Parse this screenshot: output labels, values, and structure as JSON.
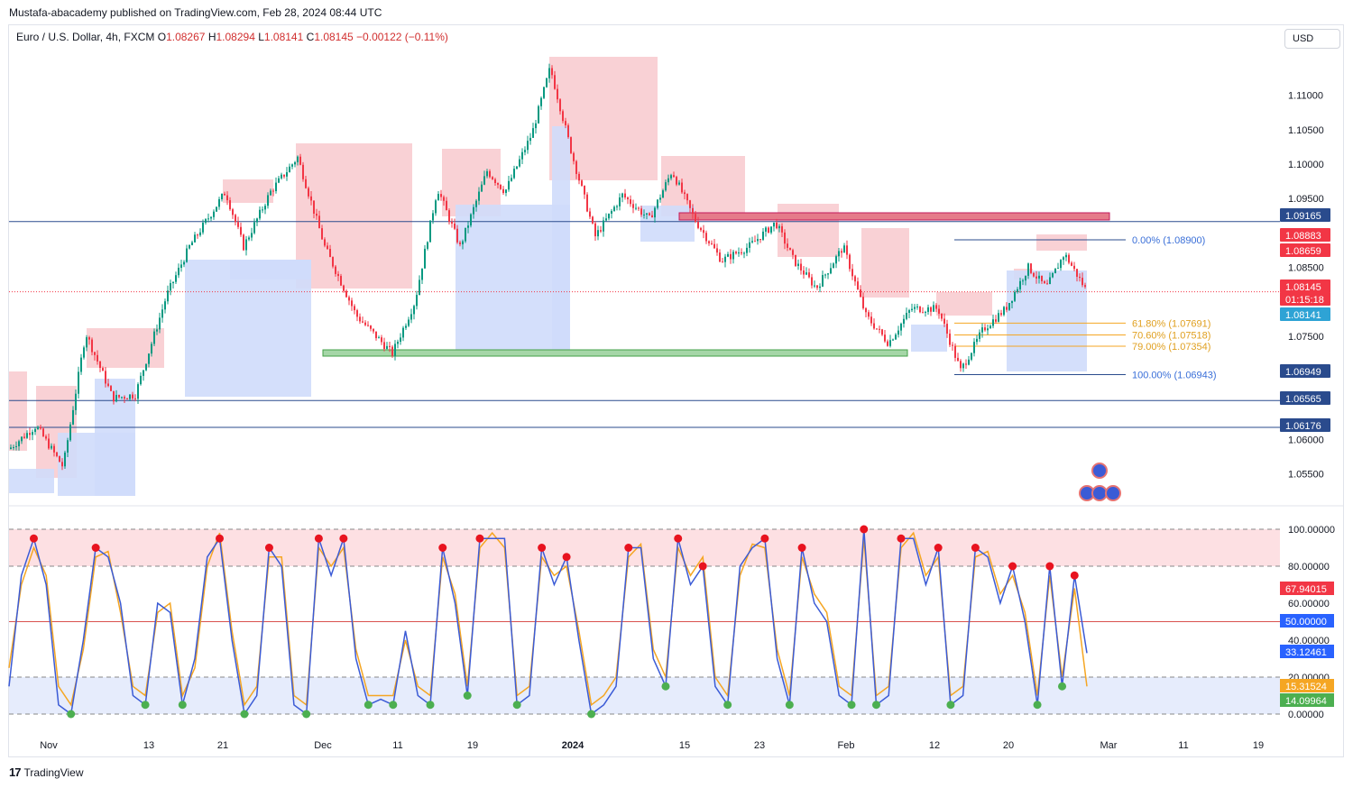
{
  "header": {
    "published": "Mustafa-abacademy published on TradingView.com, Feb 28, 2024 08:44 UTC"
  },
  "symbol": {
    "name": "Euro / U.S. Dollar, 4h, FXCM",
    "open_label": "O",
    "open": "1.08267",
    "high_label": "H",
    "high": "1.08294",
    "low_label": "L",
    "low": "1.08141",
    "close_label": "C",
    "close": "1.08145",
    "change": "−0.00122 (−0.11%)"
  },
  "currency": "USD",
  "footer": {
    "brand": "TradingView"
  },
  "colors": {
    "up": "#089981",
    "down": "#f23645",
    "resistance_fill": "#f8c9ce",
    "support_fill": "#cfdcfb",
    "hline": "#2a4b8d",
    "fib": "#f5a623",
    "fib_text": "#2962ff",
    "stoch_k": "#3b5bd6",
    "stoch_d": "#f5a623"
  },
  "chart_data": [
    {
      "type": "candlestick",
      "title": "Euro / U.S. Dollar, 4h, FXCM",
      "ylim": [
        1.0505,
        1.1165
      ],
      "y_ticks": [
        "1.11000",
        "1.10500",
        "1.10000",
        "1.09500",
        "1.08500",
        "1.07500",
        "1.06000",
        "1.05500"
      ],
      "x_ticks": [
        "Nov",
        "13",
        "21",
        "Dec",
        "11",
        "19",
        "2024",
        "15",
        "23",
        "Feb",
        "12",
        "20",
        "Mar",
        "11",
        "19"
      ],
      "price_path": [
        [
          0,
          1.0575
        ],
        [
          40,
          1.062
        ],
        [
          70,
          1.056
        ],
        [
          95,
          1.0755
        ],
        [
          125,
          1.066
        ],
        [
          150,
          1.0665
        ],
        [
          185,
          1.081
        ],
        [
          210,
          1.088
        ],
        [
          250,
          1.096
        ],
        [
          270,
          1.088
        ],
        [
          300,
          1.096
        ],
        [
          330,
          1.101
        ],
        [
          360,
          1.088
        ],
        [
          395,
          1.078
        ],
        [
          435,
          1.0725
        ],
        [
          460,
          1.08
        ],
        [
          485,
          1.0965
        ],
        [
          510,
          1.088
        ],
        [
          540,
          1.099
        ],
        [
          560,
          1.096
        ],
        [
          590,
          1.1045
        ],
        [
          610,
          1.114
        ],
        [
          635,
          1.101
        ],
        [
          660,
          1.0895
        ],
        [
          690,
          1.0955
        ],
        [
          720,
          1.092
        ],
        [
          745,
          1.099
        ],
        [
          770,
          1.092
        ],
        [
          800,
          1.086
        ],
        [
          830,
          1.088
        ],
        [
          860,
          1.0915
        ],
        [
          880,
          1.086
        ],
        [
          905,
          1.082
        ],
        [
          935,
          1.088
        ],
        [
          960,
          1.078
        ],
        [
          985,
          1.074
        ],
        [
          1010,
          1.079
        ],
        [
          1040,
          1.079
        ],
        [
          1065,
          1.07
        ],
        [
          1090,
          1.076
        ],
        [
          1115,
          1.079
        ],
        [
          1140,
          1.085
        ],
        [
          1160,
          1.082
        ],
        [
          1180,
          1.087
        ],
        [
          1205,
          1.0815
        ]
      ],
      "levels": [
        {
          "label": "1.09165",
          "value": 1.09165
        },
        {
          "label": "1.06565",
          "value": 1.06565
        },
        {
          "label": "1.06176",
          "value": 1.06176
        }
      ],
      "price_tags": [
        {
          "label": "1.09165",
          "color": "#2a4b8d"
        },
        {
          "label": "1.08883",
          "color": "#f23645"
        },
        {
          "label": "1.08659",
          "color": "#f23645"
        },
        {
          "label": "1.08145",
          "color": "#f23645"
        },
        {
          "label": "01:15:18",
          "color": "#f23645"
        },
        {
          "label": "1.08141",
          "color": "#2ea3d5"
        },
        {
          "label": "1.06949",
          "color": "#2a4b8d"
        },
        {
          "label": "1.06565",
          "color": "#2a4b8d"
        },
        {
          "label": "1.06176",
          "color": "#2a4b8d"
        }
      ],
      "fibonacci": [
        {
          "label": "0.00% (1.08900)",
          "value": 1.089
        },
        {
          "label": "61.80% (1.07691)",
          "value": 1.07691
        },
        {
          "label": "70.60% (1.07518)",
          "value": 1.07518
        },
        {
          "label": "79.00% (1.07354)",
          "value": 1.07354
        },
        {
          "label": "100.00% (1.06943)",
          "value": 1.06943
        }
      ],
      "resistance_zone": [
        1.0912,
        1.0918
      ],
      "support_zone": [
        1.0719,
        1.0725
      ]
    },
    {
      "type": "line",
      "title": "Stochastic",
      "ylim": [
        0,
        100
      ],
      "y_ticks": [
        "100.00000",
        "80.00000",
        "60.00000",
        "40.00000",
        "20.00000",
        "0.00000"
      ],
      "overbought": 80,
      "oversold": 20,
      "mid": 50,
      "series": [
        {
          "values": [
            15,
            75,
            95,
            70,
            5,
            0,
            40,
            90,
            85,
            60,
            10,
            5,
            60,
            55,
            5,
            30,
            85,
            95,
            40,
            0,
            10,
            90,
            80,
            5,
            0,
            95,
            75,
            95,
            30,
            5,
            8,
            5,
            45,
            10,
            5,
            90,
            60,
            10,
            95,
            95,
            95,
            5,
            10,
            90,
            70,
            85,
            40,
            0,
            5,
            15,
            90,
            90,
            30,
            15,
            95,
            70,
            80,
            15,
            5,
            80,
            90,
            95,
            30,
            5,
            90,
            60,
            50,
            10,
            5,
            100,
            5,
            10,
            95,
            95,
            70,
            90,
            5,
            10,
            90,
            85,
            60,
            80,
            50,
            5,
            80,
            15,
            75,
            33
          ]
        },
        {
          "values": [
            25,
            70,
            90,
            75,
            15,
            5,
            35,
            85,
            88,
            55,
            15,
            10,
            55,
            60,
            10,
            25,
            80,
            98,
            45,
            5,
            15,
            85,
            85,
            10,
            5,
            90,
            80,
            90,
            35,
            10,
            10,
            10,
            40,
            15,
            10,
            85,
            65,
            15,
            90,
            98,
            90,
            10,
            15,
            85,
            75,
            80,
            45,
            5,
            10,
            20,
            85,
            92,
            35,
            20,
            90,
            75,
            85,
            20,
            10,
            75,
            92,
            90,
            35,
            10,
            85,
            65,
            55,
            15,
            10,
            95,
            10,
            15,
            90,
            98,
            75,
            85,
            10,
            15,
            85,
            88,
            65,
            75,
            55,
            10,
            75,
            20,
            68,
            15
          ]
        }
      ],
      "last_values": {
        "k_tag": "33.12461",
        "d_tag": "15.31524",
        "mid_tag": "50.00000",
        "upper_tag": "67.94015",
        "lower_tag": "14.09964"
      }
    }
  ]
}
